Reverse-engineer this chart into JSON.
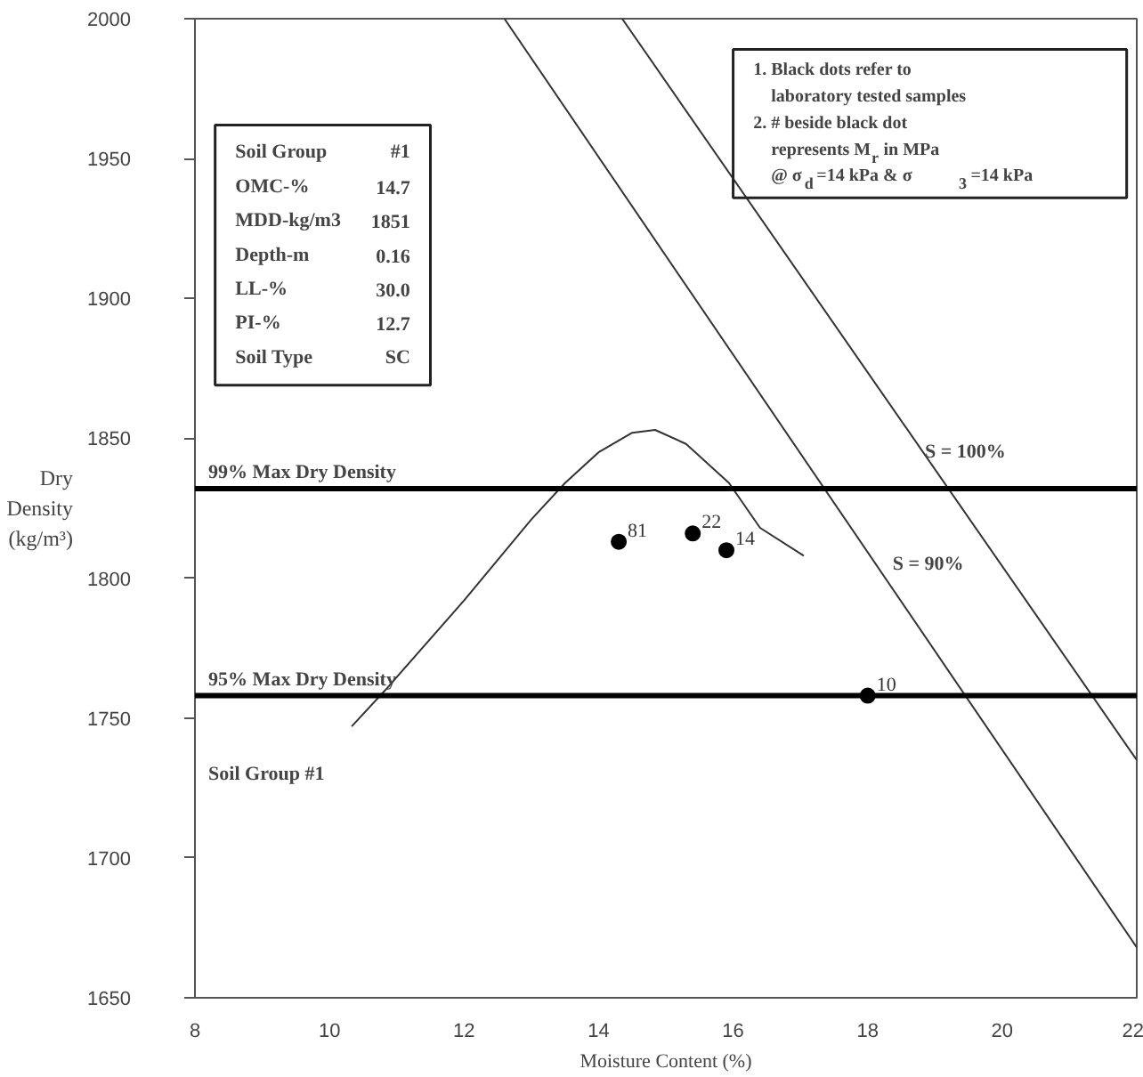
{
  "chart_data": {
    "type": "scatter",
    "xlabel": "Moisture Content (%)",
    "ylabel": "Dry\nDensity\n(kg/m³)",
    "xlim": [
      8,
      22
    ],
    "ylim": [
      1650,
      2000
    ],
    "xticks": [
      8,
      10,
      12,
      14,
      16,
      18,
      20,
      22
    ],
    "yticks": [
      1650,
      1700,
      1750,
      1800,
      1850,
      1900,
      1950,
      2000
    ],
    "grid": false,
    "series": [
      {
        "color": "#000000",
        "marker": "circle",
        "x": [
          14.3,
          15.4,
          15.9,
          18.0
        ],
        "values": [
          1813,
          1816,
          1810,
          1758
        ]
      },
      {
        "type": "line",
        "color": "#333333",
        "line_style": "solid",
        "x": [
          10.33,
          10.83,
          12.0,
          13.0,
          13.5,
          14.0,
          14.5,
          14.84,
          15.3,
          15.94,
          16.4,
          17.05
        ],
        "values": [
          1747,
          1760,
          1792,
          1821,
          1834,
          1845,
          1852,
          1853,
          1848,
          1834,
          1818,
          1808
        ]
      },
      {
        "type": "line",
        "color": "#333333",
        "line_style": "solid",
        "x": [
          14.35,
          22
        ],
        "values": [
          2000,
          1735
        ]
      },
      {
        "type": "line",
        "color": "#333333",
        "line_style": "solid",
        "x": [
          12.6,
          22
        ],
        "values": [
          2000,
          1668
        ]
      }
    ],
    "ref_lines": [
      {
        "axis": "y",
        "value": 1832,
        "label": "99% Max Dry Density",
        "color": "#000000"
      },
      {
        "axis": "y",
        "value": 1758,
        "label": "95% Max Dry Density",
        "color": "#000000"
      }
    ],
    "annotations": [
      "Soil Group\t#1\nOMC-%\t14.7\nMDD-kg/m3\t1851\nDepth-m\t0.16\nLL-%\t30.0\nPI-%\t12.7\nSoil Type\tSC",
      "1. Black dots refer to\n    laboratory tested samples\n2. # beside black dot\n    represents M$_{r}$ in MPa\n    @  σ$_{d}$ =14 kPa &       σ$_{3}$ =14 kPa",
      "S = 100%",
      "S = 90%",
      "Soil Group #1",
      {
        "text": "81",
        "x": 14.3,
        "y": 1813
      },
      {
        "text": "22",
        "x": 15.4,
        "y": 1816
      },
      {
        "text": "14",
        "x": 15.9,
        "y": 1810
      },
      {
        "text": "10",
        "x": 18.0,
        "y": 1758
      }
    ]
  }
}
